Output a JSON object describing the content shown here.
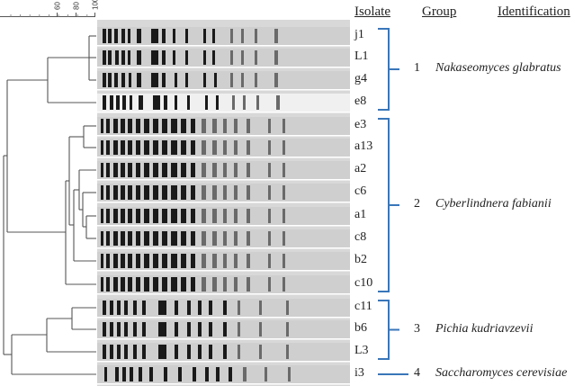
{
  "headers": {
    "isolate": "Isolate",
    "group": "Group",
    "identification": "Identification"
  },
  "scale": {
    "ticks": [
      "60",
      "80",
      "100"
    ],
    "values": [
      60,
      80,
      100
    ]
  },
  "isolates": [
    "j1",
    "L1",
    "g4",
    "e8",
    "e3",
    "a13",
    "a2",
    "c6",
    "a1",
    "c8",
    "b2",
    "c10",
    "c11",
    "b6",
    "L3",
    "i3"
  ],
  "groups": [
    {
      "number": "1",
      "name": "Nakaseomyces glabratus",
      "first": 0,
      "last": 3
    },
    {
      "number": "2",
      "name": "Cyberlindnera fabianii",
      "first": 4,
      "last": 11
    },
    {
      "number": "3",
      "name": "Pichia kudriavzevii",
      "first": 12,
      "last": 14
    },
    {
      "number": "4",
      "name": "Saccharomyces cerevisiae",
      "first": 15,
      "last": 15
    }
  ],
  "colors": {
    "bracket": "#3a76b8",
    "tree": "#555555",
    "gel_background": "#d8d8d8",
    "band": "#1a1a1a"
  }
}
